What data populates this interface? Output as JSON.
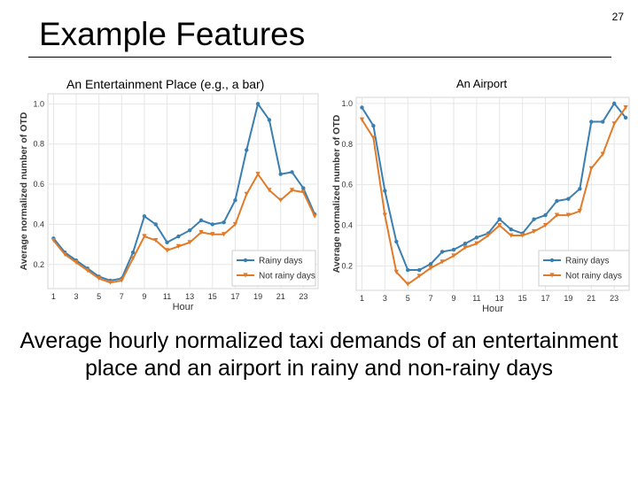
{
  "slide": {
    "title": "Example Features",
    "number": "27",
    "description": "Average hourly normalized taxi demands of an entertainment place and an airport in rainy and non-rainy days"
  },
  "colors": {
    "rainy": "#3a7fb0",
    "not_rainy": "#e07b2a",
    "grid": "#e6e6e6"
  },
  "chart_data": [
    {
      "type": "line",
      "title": "An Entertainment Place (e.g., a bar)",
      "xlabel": "Hour",
      "ylabel": "Average normalized number of OTD",
      "x": [
        1,
        2,
        3,
        4,
        5,
        6,
        7,
        8,
        9,
        10,
        11,
        12,
        13,
        14,
        15,
        16,
        17,
        18,
        19,
        20,
        21,
        22,
        23,
        24
      ],
      "xticks": [
        1,
        3,
        5,
        7,
        9,
        11,
        13,
        15,
        17,
        19,
        21,
        23
      ],
      "xtick_labels": [
        "1",
        "3",
        "5",
        "7",
        "9",
        "11",
        "13",
        "15",
        "17",
        "19",
        "21",
        "23"
      ],
      "yticks": [
        0.2,
        0.4,
        0.6,
        0.8,
        1.0
      ],
      "ytick_labels": [
        "0.2",
        "0.4",
        "0.6",
        "0.8",
        "1.0"
      ],
      "xlim": [
        0.5,
        24.3
      ],
      "ylim": [
        0.08,
        1.05
      ],
      "grid": true,
      "legend_position": "bottom-right",
      "series": [
        {
          "name": "Rainy days",
          "marker": "circle",
          "values": [
            0.33,
            0.26,
            0.22,
            0.18,
            0.14,
            0.12,
            0.13,
            0.26,
            0.44,
            0.4,
            0.31,
            0.34,
            0.37,
            0.42,
            0.4,
            0.41,
            0.52,
            0.77,
            1.0,
            0.92,
            0.65,
            0.66,
            0.58,
            0.45
          ]
        },
        {
          "name": "Not rainy days",
          "marker": "triangle",
          "values": [
            0.32,
            0.25,
            0.21,
            0.17,
            0.13,
            0.11,
            0.12,
            0.23,
            0.34,
            0.32,
            0.27,
            0.29,
            0.31,
            0.36,
            0.35,
            0.35,
            0.4,
            0.55,
            0.65,
            0.57,
            0.52,
            0.57,
            0.56,
            0.44
          ]
        }
      ]
    },
    {
      "type": "line",
      "title": "An Airport",
      "xlabel": "Hour",
      "ylabel": "Average normalized number of OTD",
      "x": [
        1,
        2,
        3,
        4,
        5,
        6,
        7,
        8,
        9,
        10,
        11,
        12,
        13,
        14,
        15,
        16,
        17,
        18,
        19,
        20,
        21,
        22,
        23,
        24
      ],
      "xticks": [
        1,
        3,
        5,
        7,
        9,
        11,
        13,
        15,
        17,
        19,
        21,
        23
      ],
      "xtick_labels": [
        "1",
        "3",
        "5",
        "7",
        "9",
        "11",
        "13",
        "15",
        "17",
        "19",
        "21",
        "23"
      ],
      "yticks": [
        0.2,
        0.4,
        0.6,
        0.8,
        1.0
      ],
      "ytick_labels": [
        "0.2",
        "0.4",
        "0.6",
        "0.8",
        "1.0"
      ],
      "xlim": [
        0.5,
        24.3
      ],
      "ylim": [
        0.08,
        1.03
      ],
      "grid": true,
      "legend_position": "bottom-right",
      "series": [
        {
          "name": "Rainy days",
          "marker": "circle",
          "values": [
            0.98,
            0.89,
            0.57,
            0.32,
            0.18,
            0.18,
            0.21,
            0.27,
            0.28,
            0.31,
            0.34,
            0.36,
            0.43,
            0.38,
            0.36,
            0.43,
            0.45,
            0.52,
            0.53,
            0.58,
            0.91,
            0.91,
            1.0,
            0.93
          ]
        },
        {
          "name": "Not rainy days",
          "marker": "triangle",
          "values": [
            0.92,
            0.83,
            0.45,
            0.17,
            0.11,
            0.15,
            0.19,
            0.22,
            0.25,
            0.29,
            0.31,
            0.35,
            0.4,
            0.35,
            0.35,
            0.37,
            0.4,
            0.45,
            0.45,
            0.47,
            0.68,
            0.75,
            0.9,
            0.98
          ]
        }
      ]
    }
  ]
}
